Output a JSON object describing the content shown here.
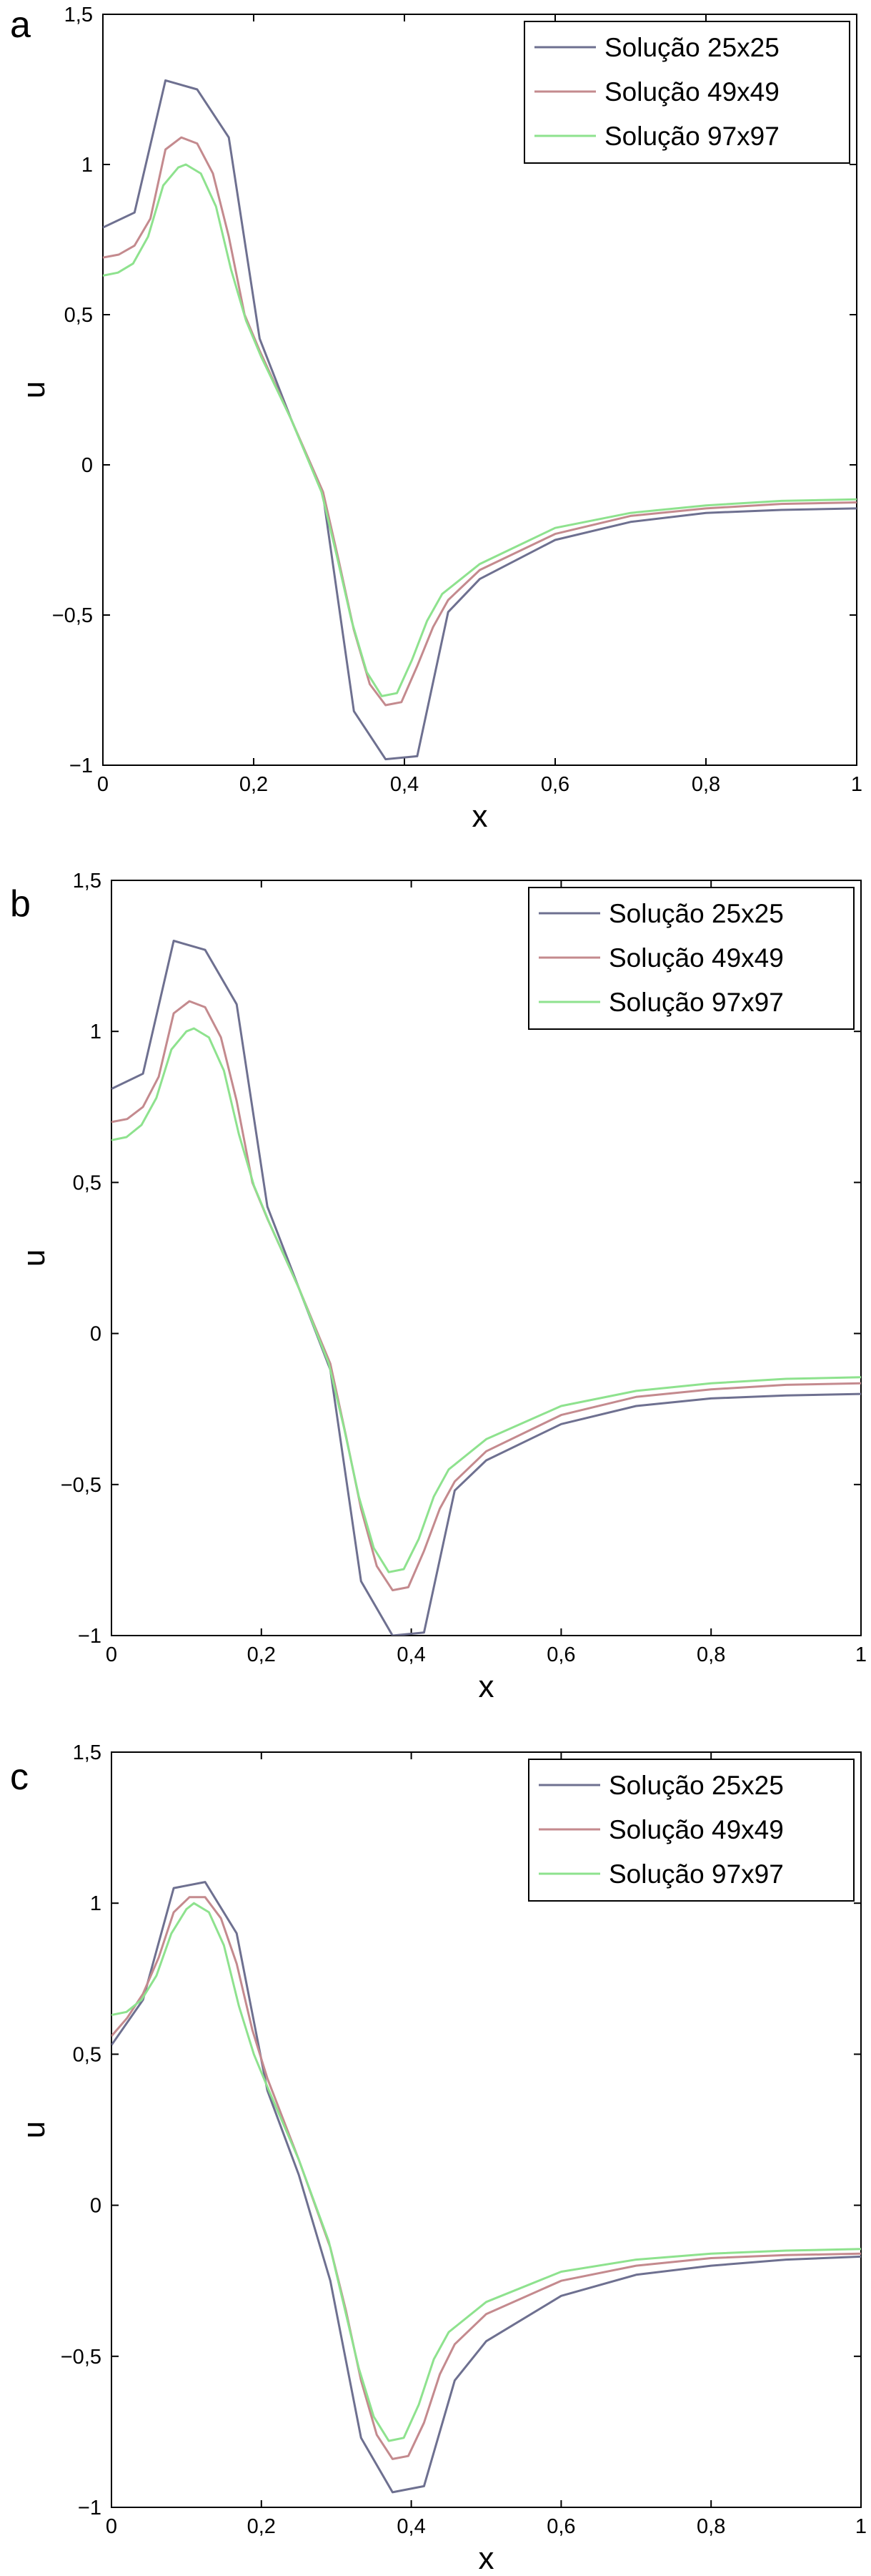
{
  "colors": {
    "series_25": "#6e7090",
    "series_49": "#c48a8e",
    "series_97": "#8ee28e",
    "axis": "#000000"
  },
  "chart_data": [
    {
      "type": "line",
      "panel_label": "a",
      "xlabel": "x",
      "ylabel": "u",
      "xlim": [
        0,
        1
      ],
      "ylim": [
        -1,
        1.5
      ],
      "xticks": [
        "0",
        "0,2",
        "0,4",
        "0,6",
        "0,8",
        "1"
      ],
      "yticks": [
        "−1",
        "−0,5",
        "0",
        "0,5",
        "1",
        "1,5"
      ],
      "legend_position": "top-right",
      "series": [
        {
          "name": "Solução 25x25",
          "color": "#6e7090",
          "x": [
            0,
            0.042,
            0.083,
            0.125,
            0.167,
            0.208,
            0.25,
            0.292,
            0.333,
            0.375,
            0.417,
            0.458,
            0.5,
            0.6,
            0.7,
            0.8,
            0.9,
            1.0
          ],
          "y": [
            0.79,
            0.84,
            1.28,
            1.25,
            1.09,
            0.42,
            0.15,
            -0.1,
            -0.82,
            -0.98,
            -0.97,
            -0.49,
            -0.38,
            -0.25,
            -0.19,
            -0.16,
            -0.15,
            -0.145
          ]
        },
        {
          "name": "Solução 49x49",
          "color": "#c48a8e",
          "x": [
            0,
            0.021,
            0.042,
            0.063,
            0.083,
            0.104,
            0.125,
            0.146,
            0.167,
            0.188,
            0.208,
            0.25,
            0.292,
            0.313,
            0.333,
            0.354,
            0.375,
            0.396,
            0.417,
            0.438,
            0.458,
            0.5,
            0.6,
            0.7,
            0.8,
            0.9,
            1.0
          ],
          "y": [
            0.69,
            0.7,
            0.73,
            0.82,
            1.05,
            1.09,
            1.07,
            0.97,
            0.76,
            0.5,
            0.38,
            0.15,
            -0.09,
            -0.32,
            -0.55,
            -0.73,
            -0.8,
            -0.79,
            -0.67,
            -0.54,
            -0.45,
            -0.35,
            -0.23,
            -0.17,
            -0.145,
            -0.13,
            -0.125
          ]
        },
        {
          "name": "Solução 97x97",
          "color": "#8ee28e",
          "x": [
            0,
            0.02,
            0.04,
            0.06,
            0.08,
            0.1,
            0.11,
            0.13,
            0.15,
            0.17,
            0.19,
            0.21,
            0.25,
            0.29,
            0.31,
            0.33,
            0.35,
            0.37,
            0.39,
            0.41,
            0.43,
            0.45,
            0.5,
            0.6,
            0.7,
            0.8,
            0.9,
            1.0
          ],
          "y": [
            0.63,
            0.64,
            0.67,
            0.76,
            0.93,
            0.99,
            1.0,
            0.97,
            0.86,
            0.65,
            0.48,
            0.36,
            0.15,
            -0.09,
            -0.3,
            -0.52,
            -0.69,
            -0.77,
            -0.76,
            -0.65,
            -0.52,
            -0.43,
            -0.33,
            -0.21,
            -0.16,
            -0.135,
            -0.12,
            -0.115
          ]
        }
      ]
    },
    {
      "type": "line",
      "panel_label": "b",
      "xlabel": "x",
      "ylabel": "u",
      "xlim": [
        0,
        1
      ],
      "ylim": [
        -1,
        1.5
      ],
      "xticks": [
        "0",
        "0,2",
        "0,4",
        "0,6",
        "0,8",
        "1"
      ],
      "yticks": [
        "−1",
        "−0,5",
        "0",
        "0,5",
        "1",
        "1,5"
      ],
      "legend_position": "top-right",
      "series": [
        {
          "name": "Solução 25x25",
          "color": "#6e7090",
          "x": [
            0,
            0.042,
            0.083,
            0.125,
            0.167,
            0.208,
            0.25,
            0.292,
            0.333,
            0.375,
            0.417,
            0.458,
            0.5,
            0.6,
            0.7,
            0.8,
            0.9,
            1.0
          ],
          "y": [
            0.81,
            0.86,
            1.3,
            1.27,
            1.09,
            0.42,
            0.15,
            -0.12,
            -0.82,
            -1.0,
            -0.99,
            -0.52,
            -0.42,
            -0.3,
            -0.24,
            -0.215,
            -0.205,
            -0.2
          ]
        },
        {
          "name": "Solução 49x49",
          "color": "#c48a8e",
          "x": [
            0,
            0.021,
            0.042,
            0.063,
            0.083,
            0.104,
            0.125,
            0.146,
            0.167,
            0.188,
            0.208,
            0.25,
            0.292,
            0.313,
            0.333,
            0.354,
            0.375,
            0.396,
            0.417,
            0.438,
            0.458,
            0.5,
            0.6,
            0.7,
            0.8,
            0.9,
            1.0
          ],
          "y": [
            0.7,
            0.71,
            0.75,
            0.85,
            1.06,
            1.1,
            1.08,
            0.98,
            0.77,
            0.5,
            0.38,
            0.15,
            -0.1,
            -0.34,
            -0.58,
            -0.77,
            -0.85,
            -0.84,
            -0.72,
            -0.58,
            -0.49,
            -0.39,
            -0.27,
            -0.21,
            -0.185,
            -0.17,
            -0.165
          ]
        },
        {
          "name": "Solução 97x97",
          "color": "#8ee28e",
          "x": [
            0,
            0.02,
            0.04,
            0.06,
            0.08,
            0.1,
            0.11,
            0.13,
            0.15,
            0.17,
            0.19,
            0.21,
            0.25,
            0.29,
            0.31,
            0.33,
            0.35,
            0.37,
            0.39,
            0.41,
            0.43,
            0.45,
            0.5,
            0.6,
            0.7,
            0.8,
            0.9,
            1.0
          ],
          "y": [
            0.64,
            0.65,
            0.69,
            0.78,
            0.94,
            1.0,
            1.01,
            0.98,
            0.87,
            0.66,
            0.49,
            0.37,
            0.15,
            -0.1,
            -0.31,
            -0.54,
            -0.71,
            -0.79,
            -0.78,
            -0.68,
            -0.54,
            -0.45,
            -0.35,
            -0.24,
            -0.19,
            -0.165,
            -0.15,
            -0.145
          ]
        }
      ]
    },
    {
      "type": "line",
      "panel_label": "c",
      "xlabel": "x",
      "ylabel": "u",
      "xlim": [
        0,
        1
      ],
      "ylim": [
        -1,
        1.5
      ],
      "xticks": [
        "0",
        "0,2",
        "0,4",
        "0,6",
        "0,8",
        "1"
      ],
      "yticks": [
        "−1",
        "−0,5",
        "0",
        "0,5",
        "1",
        "1,5"
      ],
      "legend_position": "top-right",
      "series": [
        {
          "name": "Solução 25x25",
          "color": "#6e7090",
          "x": [
            0,
            0.042,
            0.083,
            0.125,
            0.167,
            0.208,
            0.25,
            0.292,
            0.333,
            0.375,
            0.417,
            0.458,
            0.5,
            0.6,
            0.7,
            0.8,
            0.9,
            1.0
          ],
          "y": [
            0.53,
            0.68,
            1.05,
            1.07,
            0.9,
            0.38,
            0.1,
            -0.25,
            -0.77,
            -0.95,
            -0.93,
            -0.58,
            -0.45,
            -0.3,
            -0.23,
            -0.2,
            -0.18,
            -0.17
          ]
        },
        {
          "name": "Solução 49x49",
          "color": "#c48a8e",
          "x": [
            0,
            0.021,
            0.042,
            0.063,
            0.083,
            0.104,
            0.125,
            0.146,
            0.167,
            0.188,
            0.208,
            0.25,
            0.292,
            0.313,
            0.333,
            0.354,
            0.375,
            0.396,
            0.417,
            0.438,
            0.458,
            0.5,
            0.6,
            0.7,
            0.8,
            0.9,
            1.0
          ],
          "y": [
            0.56,
            0.62,
            0.7,
            0.82,
            0.97,
            1.02,
            1.02,
            0.95,
            0.8,
            0.58,
            0.42,
            0.15,
            -0.14,
            -0.35,
            -0.58,
            -0.76,
            -0.84,
            -0.83,
            -0.72,
            -0.56,
            -0.46,
            -0.36,
            -0.25,
            -0.2,
            -0.175,
            -0.165,
            -0.16
          ]
        },
        {
          "name": "Solução 97x97",
          "color": "#8ee28e",
          "x": [
            0,
            0.02,
            0.04,
            0.06,
            0.08,
            0.1,
            0.11,
            0.13,
            0.15,
            0.17,
            0.19,
            0.21,
            0.25,
            0.29,
            0.31,
            0.33,
            0.35,
            0.37,
            0.39,
            0.41,
            0.43,
            0.45,
            0.5,
            0.6,
            0.7,
            0.8,
            0.9,
            1.0
          ],
          "y": [
            0.63,
            0.64,
            0.68,
            0.76,
            0.9,
            0.98,
            1.0,
            0.97,
            0.86,
            0.66,
            0.5,
            0.38,
            0.15,
            -0.12,
            -0.33,
            -0.54,
            -0.7,
            -0.78,
            -0.77,
            -0.66,
            -0.51,
            -0.42,
            -0.32,
            -0.22,
            -0.18,
            -0.16,
            -0.15,
            -0.145
          ]
        }
      ]
    }
  ]
}
